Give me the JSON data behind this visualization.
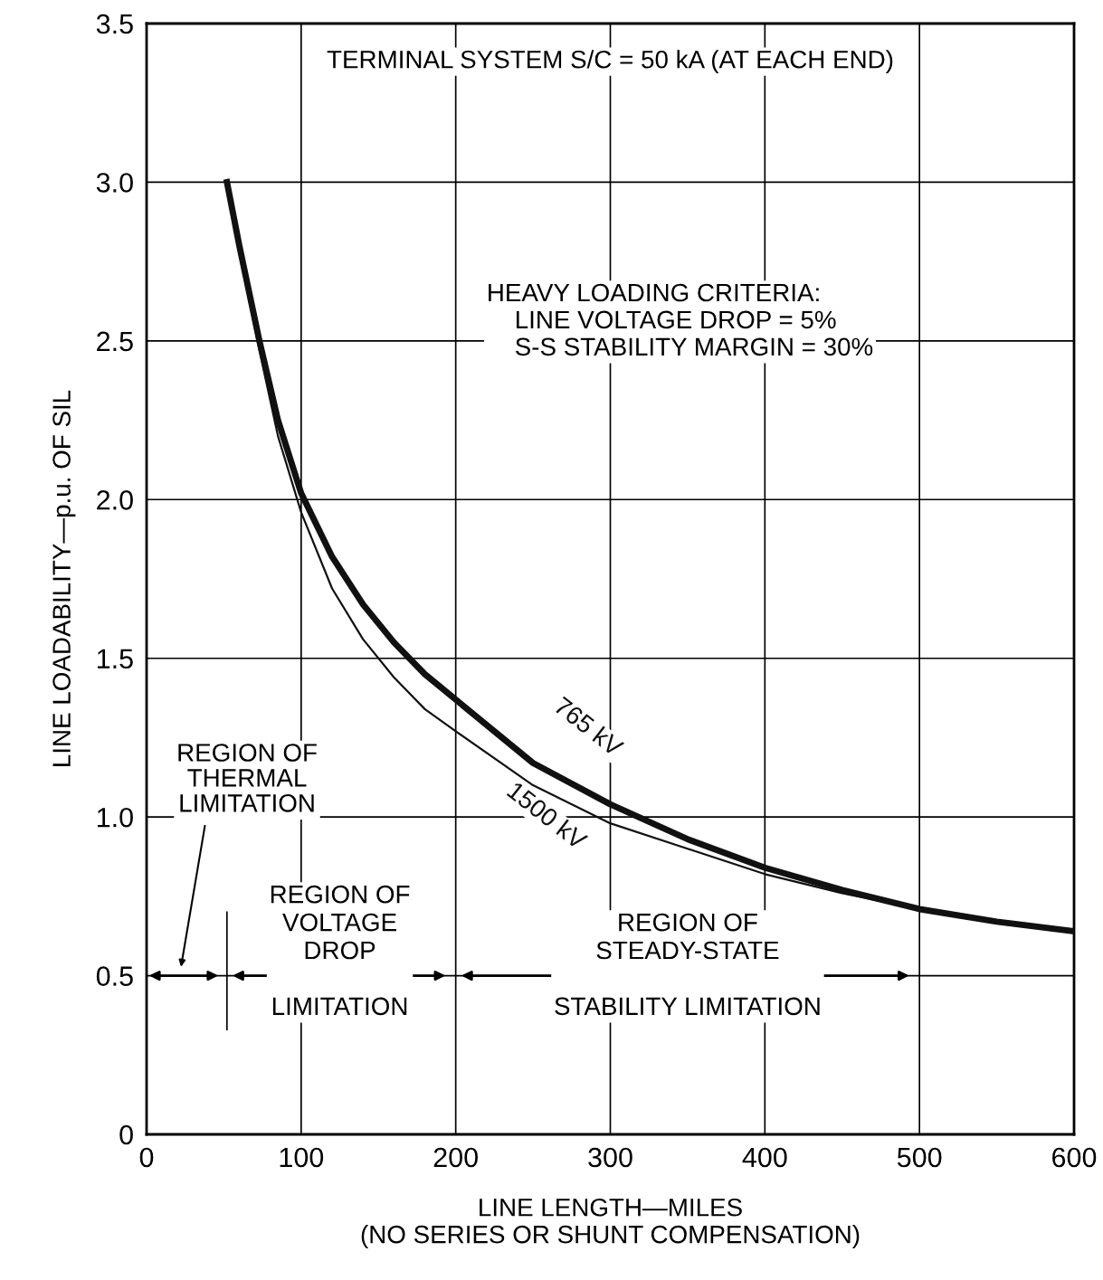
{
  "chart_data": {
    "type": "line",
    "xlabel": "LINE LENGTH—MILES\n(NO SERIES OR SHUNT COMPENSATION)",
    "ylabel": "LINE LOADABILITY—p.u. OF SIL",
    "xlim": [
      0,
      600
    ],
    "xticks": [
      0,
      100,
      200,
      300,
      400,
      500,
      600
    ],
    "ylim": [
      0,
      3.5
    ],
    "yticks": [
      0,
      0.5,
      {
        "value": 1,
        "label": "1.0"
      },
      1.5,
      {
        "value": 2,
        "label": "2.0"
      },
      2.5,
      {
        "value": 3,
        "label": "3.0"
      },
      3.5
    ],
    "grid": true,
    "marker": "none",
    "line_style": "solid",
    "ref_lines": [
      {
        "axis": "x",
        "value": 52
      }
    ],
    "series": [
      {
        "name": "765 kV",
        "color": "#111111",
        "x": [
          52,
          60,
          73,
          85,
          100,
          120,
          140,
          160,
          180,
          200,
          250,
          300,
          350,
          400,
          450,
          500,
          550,
          600
        ],
        "values": [
          3.0,
          2.8,
          2.5,
          2.25,
          2.02,
          1.82,
          1.67,
          1.55,
          1.45,
          1.37,
          1.17,
          1.04,
          0.93,
          0.84,
          0.77,
          0.71,
          0.67,
          0.64
        ]
      },
      {
        "name": "1500 kV",
        "color": "#111111",
        "x": [
          52,
          60,
          73,
          85,
          100,
          120,
          140,
          160,
          180,
          200,
          250,
          300,
          350,
          400,
          450,
          500,
          550,
          600
        ],
        "values": [
          3.0,
          2.78,
          2.47,
          2.2,
          1.96,
          1.72,
          1.56,
          1.44,
          1.34,
          1.27,
          1.1,
          0.98,
          0.9,
          0.82,
          0.76,
          0.71,
          0.67,
          0.64
        ]
      }
    ],
    "annotations": [
      "TERMINAL SYSTEM S/C = 50 kA (AT EACH END)",
      "HEAVY LOADING CRITERIA:\n    LINE VOLTAGE DROP = 5%\n    S-S STABILITY MARGIN = 30%",
      "REGION OF\nTHERMAL\nLIMITATION",
      "REGION OF\nVOLTAGE\nDROP\n\nLIMITATION",
      "REGION OF\nSTEADY-STATE\n\nSTABILITY LIMITATION"
    ]
  }
}
